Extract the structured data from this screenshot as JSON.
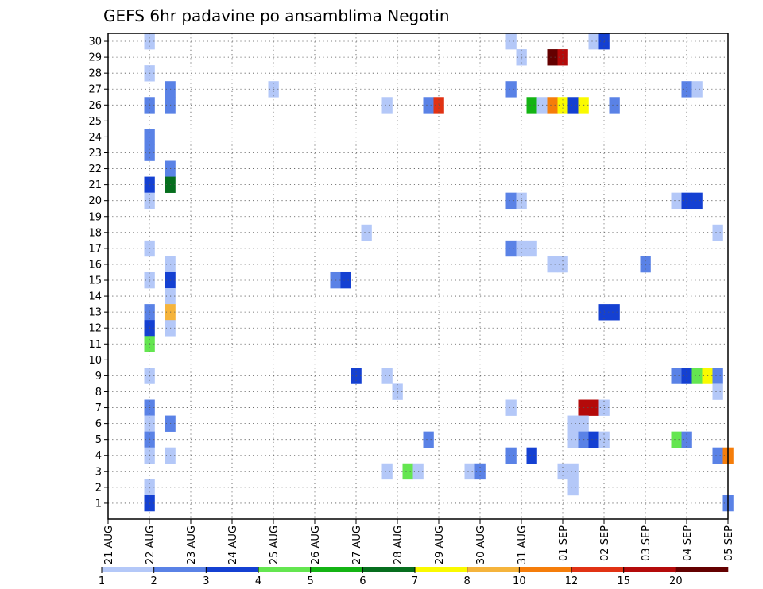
{
  "chart_data": {
    "type": "heatmap",
    "title": "GEFS 6hr padavine po ansamblima Negotin",
    "xlabel": "",
    "ylabel": "",
    "x_tick_labels": [
      "21 AUG",
      "22 AUG",
      "23 AUG",
      "24 AUG",
      "25 AUG",
      "26 AUG",
      "27 AUG",
      "28 AUG",
      "29 AUG",
      "30 AUG",
      "31 AUG",
      "01 SEP",
      "02 SEP",
      "03 SEP",
      "04 SEP",
      "05 SEP"
    ],
    "y_tick_labels": [
      "1",
      "2",
      "3",
      "4",
      "5",
      "6",
      "7",
      "8",
      "9",
      "10",
      "11",
      "12",
      "13",
      "14",
      "15",
      "16",
      "17",
      "18",
      "19",
      "20",
      "21",
      "22",
      "23",
      "24",
      "25",
      "26",
      "27",
      "28",
      "29",
      "30"
    ],
    "xlim_steps": [
      0,
      60
    ],
    "ylim_members": [
      0,
      30
    ],
    "grid": true,
    "legend_position": "bottom",
    "legend": {
      "labels": [
        "1",
        "2",
        "3",
        "4",
        "5",
        "6",
        "7",
        "8",
        "10",
        "12",
        "15",
        "20"
      ],
      "colors": [
        "#b4c8f8",
        "#5a82e6",
        "#1440d2",
        "#64e650",
        "#14b414",
        "#066e1e",
        "#fafa00",
        "#f5b43c",
        "#f57d0a",
        "#e13214",
        "#b40a0a",
        "#640000"
      ]
    },
    "cells": [
      {
        "member": 30,
        "step": 4,
        "value": 1
      },
      {
        "member": 30,
        "step": 39,
        "value": 1
      },
      {
        "member": 30,
        "step": 47,
        "value": 1
      },
      {
        "member": 30,
        "step": 48,
        "value": 3
      },
      {
        "member": 29,
        "step": 40,
        "value": 1
      },
      {
        "member": 29,
        "step": 43,
        "value": 20
      },
      {
        "member": 29,
        "step": 44,
        "value": 15
      },
      {
        "member": 28,
        "step": 4,
        "value": 1
      },
      {
        "member": 27,
        "step": 6,
        "value": 2
      },
      {
        "member": 27,
        "step": 16,
        "value": 1
      },
      {
        "member": 27,
        "step": 39,
        "value": 2
      },
      {
        "member": 27,
        "step": 56,
        "value": 2
      },
      {
        "member": 27,
        "step": 57,
        "value": 1
      },
      {
        "member": 26,
        "step": 4,
        "value": 2
      },
      {
        "member": 26,
        "step": 6,
        "value": 2
      },
      {
        "member": 26,
        "step": 27,
        "value": 1
      },
      {
        "member": 26,
        "step": 31,
        "value": 2
      },
      {
        "member": 26,
        "step": 32,
        "value": 12
      },
      {
        "member": 26,
        "step": 41,
        "value": 5
      },
      {
        "member": 26,
        "step": 42,
        "value": 1
      },
      {
        "member": 26,
        "step": 43,
        "value": 10
      },
      {
        "member": 26,
        "step": 44,
        "value": 7
      },
      {
        "member": 26,
        "step": 45,
        "value": 3
      },
      {
        "member": 26,
        "step": 46,
        "value": 7
      },
      {
        "member": 26,
        "step": 49,
        "value": 2
      },
      {
        "member": 24,
        "step": 4,
        "value": 2
      },
      {
        "member": 23,
        "step": 4,
        "value": 2
      },
      {
        "member": 22,
        "step": 6,
        "value": 2
      },
      {
        "member": 21,
        "step": 4,
        "value": 3
      },
      {
        "member": 21,
        "step": 6,
        "value": 6
      },
      {
        "member": 20,
        "step": 4,
        "value": 1
      },
      {
        "member": 20,
        "step": 39,
        "value": 2
      },
      {
        "member": 20,
        "step": 40,
        "value": 1
      },
      {
        "member": 20,
        "step": 55,
        "value": 1
      },
      {
        "member": 20,
        "step": 56,
        "value": 3
      },
      {
        "member": 20,
        "step": 57,
        "value": 3
      },
      {
        "member": 18,
        "step": 25,
        "value": 1
      },
      {
        "member": 18,
        "step": 59,
        "value": 1
      },
      {
        "member": 17,
        "step": 4,
        "value": 1
      },
      {
        "member": 17,
        "step": 39,
        "value": 2
      },
      {
        "member": 17,
        "step": 40,
        "value": 1
      },
      {
        "member": 17,
        "step": 41,
        "value": 1
      },
      {
        "member": 16,
        "step": 6,
        "value": 1
      },
      {
        "member": 16,
        "step": 43,
        "value": 1
      },
      {
        "member": 16,
        "step": 44,
        "value": 1
      },
      {
        "member": 16,
        "step": 52,
        "value": 2
      },
      {
        "member": 15,
        "step": 4,
        "value": 1
      },
      {
        "member": 15,
        "step": 6,
        "value": 3
      },
      {
        "member": 15,
        "step": 22,
        "value": 2
      },
      {
        "member": 15,
        "step": 23,
        "value": 3
      },
      {
        "member": 14,
        "step": 6,
        "value": 1
      },
      {
        "member": 13,
        "step": 4,
        "value": 2
      },
      {
        "member": 13,
        "step": 6,
        "value": 8
      },
      {
        "member": 13,
        "step": 48,
        "value": 3
      },
      {
        "member": 13,
        "step": 49,
        "value": 3
      },
      {
        "member": 12,
        "step": 4,
        "value": 3
      },
      {
        "member": 12,
        "step": 6,
        "value": 1
      },
      {
        "member": 11,
        "step": 4,
        "value": 4
      },
      {
        "member": 9,
        "step": 4,
        "value": 1
      },
      {
        "member": 9,
        "step": 24,
        "value": 3
      },
      {
        "member": 9,
        "step": 27,
        "value": 1
      },
      {
        "member": 9,
        "step": 55,
        "value": 2
      },
      {
        "member": 9,
        "step": 56,
        "value": 3
      },
      {
        "member": 9,
        "step": 57,
        "value": 4
      },
      {
        "member": 9,
        "step": 58,
        "value": 7
      },
      {
        "member": 9,
        "step": 59,
        "value": 2
      },
      {
        "member": 8,
        "step": 28,
        "value": 1
      },
      {
        "member": 8,
        "step": 59,
        "value": 1
      },
      {
        "member": 7,
        "step": 4,
        "value": 2
      },
      {
        "member": 7,
        "step": 39,
        "value": 1
      },
      {
        "member": 7,
        "step": 46,
        "value": 15
      },
      {
        "member": 7,
        "step": 47,
        "value": 15
      },
      {
        "member": 7,
        "step": 48,
        "value": 1
      },
      {
        "member": 6,
        "step": 4,
        "value": 1
      },
      {
        "member": 6,
        "step": 6,
        "value": 2
      },
      {
        "member": 6,
        "step": 45,
        "value": 1
      },
      {
        "member": 6,
        "step": 46,
        "value": 1
      },
      {
        "member": 5,
        "step": 4,
        "value": 2
      },
      {
        "member": 5,
        "step": 31,
        "value": 2
      },
      {
        "member": 5,
        "step": 45,
        "value": 1
      },
      {
        "member": 5,
        "step": 46,
        "value": 2
      },
      {
        "member": 5,
        "step": 47,
        "value": 3
      },
      {
        "member": 5,
        "step": 48,
        "value": 1
      },
      {
        "member": 5,
        "step": 55,
        "value": 4
      },
      {
        "member": 5,
        "step": 56,
        "value": 2
      },
      {
        "member": 4,
        "step": 4,
        "value": 1
      },
      {
        "member": 4,
        "step": 6,
        "value": 1
      },
      {
        "member": 4,
        "step": 39,
        "value": 2
      },
      {
        "member": 4,
        "step": 41,
        "value": 3
      },
      {
        "member": 4,
        "step": 59,
        "value": 2
      },
      {
        "member": 4,
        "step": 60,
        "value": 10
      },
      {
        "member": 3,
        "step": 27,
        "value": 1
      },
      {
        "member": 3,
        "step": 29,
        "value": 4
      },
      {
        "member": 3,
        "step": 30,
        "value": 1
      },
      {
        "member": 3,
        "step": 35,
        "value": 1
      },
      {
        "member": 3,
        "step": 36,
        "value": 2
      },
      {
        "member": 3,
        "step": 44,
        "value": 1
      },
      {
        "member": 3,
        "step": 45,
        "value": 1
      },
      {
        "member": 2,
        "step": 4,
        "value": 1
      },
      {
        "member": 2,
        "step": 45,
        "value": 1
      },
      {
        "member": 1,
        "step": 4,
        "value": 3
      },
      {
        "member": 1,
        "step": 60,
        "value": 2
      }
    ]
  }
}
